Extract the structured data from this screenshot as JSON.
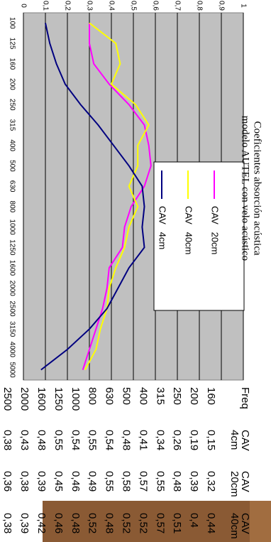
{
  "chart_data": {
    "type": "line",
    "title": [
      "Coeficientes absorción acústica",
      "modelo AUTEL con velo acústico"
    ],
    "categories": [
      "100",
      "125",
      "160",
      "200",
      "250",
      "315",
      "400",
      "500",
      "630",
      "800",
      "1000",
      "1250",
      "1600",
      "2000",
      "2500",
      "3150",
      "4000",
      "5000"
    ],
    "series": [
      {
        "name": "CAV   20cm",
        "color": "#ff00ff",
        "values": [
          0.3,
          0.3,
          0.32,
          0.39,
          0.48,
          0.55,
          0.57,
          0.58,
          0.55,
          0.49,
          0.46,
          0.45,
          0.39,
          0.38,
          0.36,
          0.33,
          0.3,
          0.27
        ]
      },
      {
        "name": "CAV   40cm",
        "color": "#ffff00",
        "values": [
          0.3,
          0.42,
          0.44,
          0.4,
          0.51,
          0.57,
          0.52,
          0.52,
          0.48,
          0.52,
          0.48,
          0.46,
          0.42,
          0.39,
          0.38,
          0.35,
          0.33,
          0.28
        ]
      },
      {
        "name": "CAV   4cm",
        "color": "#000080",
        "values": [
          0.1,
          0.12,
          0.15,
          0.19,
          0.26,
          0.34,
          0.41,
          0.48,
          0.54,
          0.55,
          0.54,
          0.55,
          0.48,
          0.43,
          0.38,
          0.3,
          0.2,
          0.08
        ]
      }
    ],
    "ylim": [
      0,
      1
    ],
    "yticks": [
      0,
      {
        "value": 0.1,
        "label": "0,1"
      },
      {
        "value": 0.2,
        "label": "0,2"
      },
      {
        "value": 0.3,
        "label": "0,3"
      },
      {
        "value": 0.4,
        "label": "0,4"
      },
      {
        "value": 0.5,
        "label": "0,5"
      },
      {
        "value": 0.6,
        "label": "0,6"
      },
      {
        "value": 0.7,
        "label": "0,7"
      },
      {
        "value": 0.8,
        "label": "0,8"
      },
      {
        "value": 0.9,
        "label": "0,9"
      },
      1
    ],
    "grid": true
  },
  "table": {
    "header": [
      [
        "Freq"
      ],
      [
        "CAV",
        "4cm"
      ],
      [
        "CAV",
        "20cm"
      ],
      [
        "CAV",
        "40cm"
      ]
    ],
    "rows": [
      [
        "160",
        "0,15",
        "0,32",
        "0,44"
      ],
      [
        "200",
        "0,19",
        "0,39",
        "0,4"
      ],
      [
        "250",
        "0,26",
        "0,48",
        "0,51"
      ],
      [
        "315",
        "0,34",
        "0,55",
        "0,57"
      ],
      [
        "400",
        "0,41",
        "0,57",
        "0,52"
      ],
      [
        "500",
        "0,48",
        "0,58",
        "0,52"
      ],
      [
        "630",
        "0,54",
        "0,55",
        "0,48"
      ],
      [
        "800",
        "0,55",
        "0,49",
        "0,52"
      ],
      [
        "1000",
        "0,54",
        "0,46",
        "0,48"
      ],
      [
        "1250",
        "0,55",
        "0,45",
        "0,46"
      ],
      [
        "1600",
        "0,48",
        "0,39",
        "0,42"
      ],
      [
        "2000",
        "0,43",
        "0,38",
        "0,39"
      ],
      [
        "2500",
        "0,38",
        "0,36",
        "0,38"
      ]
    ]
  }
}
